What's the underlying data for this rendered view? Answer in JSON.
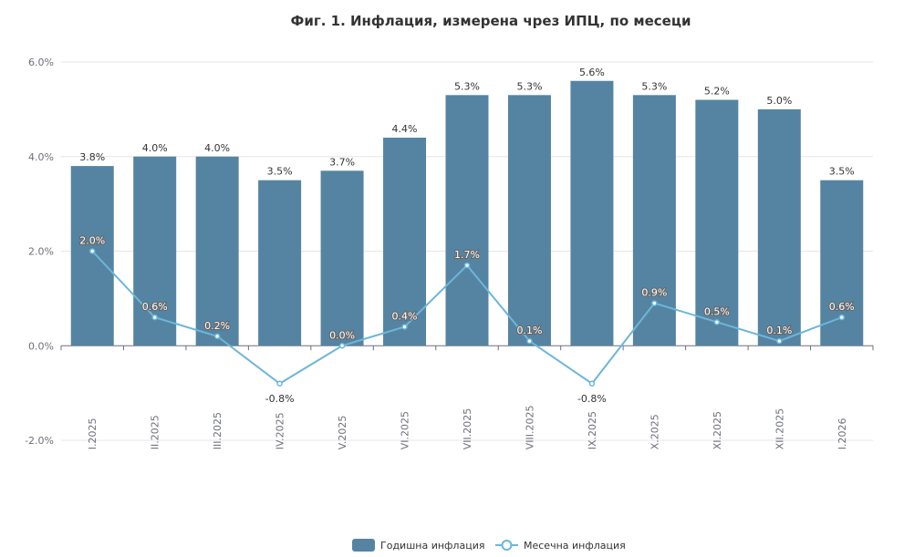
{
  "chart_data": {
    "type": "bar",
    "title": "Фиг. 1. Инфлация, измерена чрез ИПЦ, по месеци",
    "categories": [
      "I.2025",
      "II.2025",
      "III.2025",
      "IV.2025",
      "V.2025",
      "VI.2025",
      "VII.2025",
      "VIII.2025",
      "IX.2025",
      "X.2025",
      "XI.2025",
      "XII.2025",
      "I.2026"
    ],
    "series": [
      {
        "name": "Годишна инфлация",
        "type": "bar",
        "color": "#5584a3",
        "values": [
          3.8,
          4.0,
          4.0,
          3.5,
          3.7,
          4.4,
          5.3,
          5.3,
          5.6,
          5.3,
          5.2,
          5.0,
          3.5
        ]
      },
      {
        "name": "Месечна инфлация",
        "type": "line",
        "color": "#6cb6da",
        "values": [
          2.0,
          0.6,
          0.2,
          -0.8,
          0.0,
          0.4,
          1.7,
          0.1,
          -0.8,
          0.9,
          0.5,
          0.1,
          0.6
        ]
      }
    ],
    "ylim": [
      -2.0,
      6.0
    ],
    "yticks": [
      -2.0,
      0.0,
      2.0,
      4.0,
      6.0
    ],
    "value_format": "%",
    "grid": true,
    "legend": "bottom"
  }
}
